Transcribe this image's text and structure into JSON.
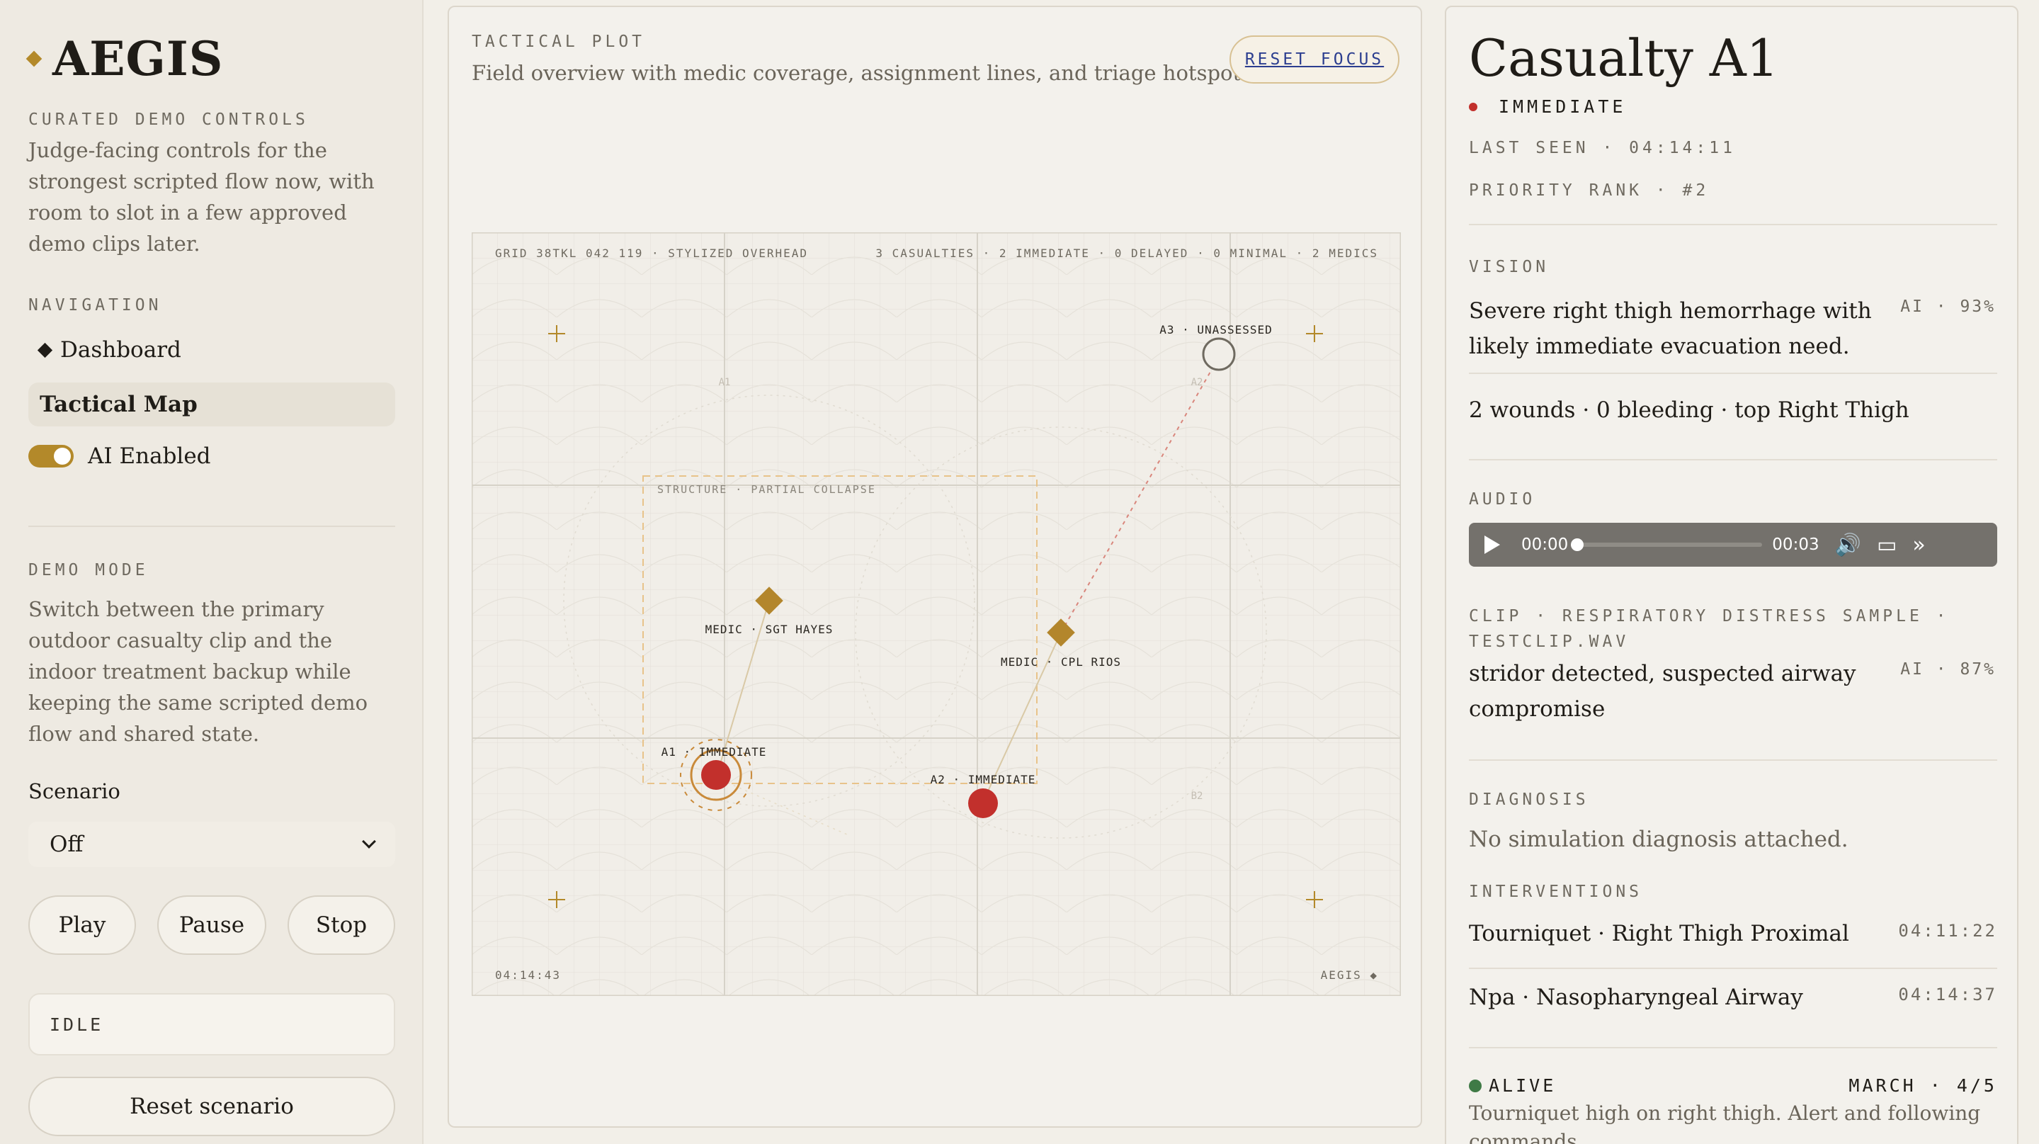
{
  "sidebar": {
    "brand": "AEGIS",
    "curated_label": "CURATED DEMO CONTROLS",
    "curated_text": "Judge-facing controls for the strongest scripted flow now, with room to slot in a few approved demo clips later.",
    "nav_label": "NAVIGATION",
    "nav_items": [
      {
        "label": "Dashboard",
        "active": false
      },
      {
        "label": "Tactical Map",
        "active": true
      }
    ],
    "ai_toggle_label": "AI Enabled",
    "ai_enabled": true,
    "demo_mode_label": "DEMO MODE",
    "demo_mode_text": "Switch between the primary outdoor casualty clip and the indoor treatment backup while keeping the same scripted demo flow and shared state.",
    "scenario_label": "Scenario",
    "scenario_value": "Off",
    "buttons": {
      "play": "Play",
      "pause": "Pause",
      "stop": "Stop"
    },
    "status": "IDLE",
    "reset_scenario": "Reset scenario"
  },
  "tactical": {
    "eyebrow": "TACTICAL PLOT",
    "description": "Field overview with medic coverage, assignment lines, and triage hotspots.",
    "reset_focus": "RESET FOCUS",
    "map": {
      "grid_label": "GRID 38TKL 042 119 · STYLIZED OVERHEAD",
      "summary": "3 CASUALTIES · 2 IMMEDIATE · 0 DELAYED · 0 MINIMAL · 2 MEDICS",
      "structure_label": "STRUCTURE · PARTIAL COLLAPSE",
      "timestamp": "04:14:43",
      "watermark": "AEGIS ◆",
      "zone_labels": [
        "A1",
        "A2",
        "B2"
      ],
      "medics": [
        {
          "label": "MEDIC · SGT HAYES"
        },
        {
          "label": "MEDIC · CPL RIOS"
        }
      ],
      "casualties": [
        {
          "label": "A1 · IMMEDIATE",
          "status": "immediate",
          "focused": true
        },
        {
          "label": "A2 · IMMEDIATE",
          "status": "immediate",
          "focused": false
        },
        {
          "label": "A3 · UNASSESSED",
          "status": "unassessed",
          "focused": false
        }
      ],
      "colors": {
        "immediate": "#c2302c",
        "medic": "#b3862c",
        "line": "#d9c9a6",
        "assign_dashed": "#d9867c",
        "grid": "#dcd8cf"
      }
    }
  },
  "casualty": {
    "title": "Casualty A1",
    "status": "IMMEDIATE",
    "last_seen": "LAST SEEN · 04:14:11",
    "priority_rank": "PRIORITY RANK · #2",
    "vision_label": "VISION",
    "vision_text": "Severe right thigh hemorrhage with likely immediate evacuation need.",
    "vision_conf": "AI · 93%",
    "wounds_summary": "2 wounds · 0 bleeding · top Right Thigh",
    "audio_label": "AUDIO",
    "audio": {
      "current": "00:00",
      "duration": "00:03",
      "progress": 0
    },
    "clip_label": "CLIP · RESPIRATORY DISTRESS SAMPLE · TESTCLIP.WAV",
    "clip_text": "stridor detected, suspected airway compromise",
    "clip_conf": "AI · 87%",
    "diagnosis_label": "DIAGNOSIS",
    "diagnosis_text": "No simulation diagnosis attached.",
    "interventions_label": "INTERVENTIONS",
    "interventions": [
      {
        "name": "Tourniquet · Right Thigh Proximal",
        "time": "04:11:22"
      },
      {
        "name": "Npa · Nasopharyngeal Airway",
        "time": "04:14:37"
      }
    ],
    "alive": "ALIVE",
    "march": "MARCH · 4/5",
    "note": "Tourniquet high on right thigh. Alert and following commands."
  }
}
